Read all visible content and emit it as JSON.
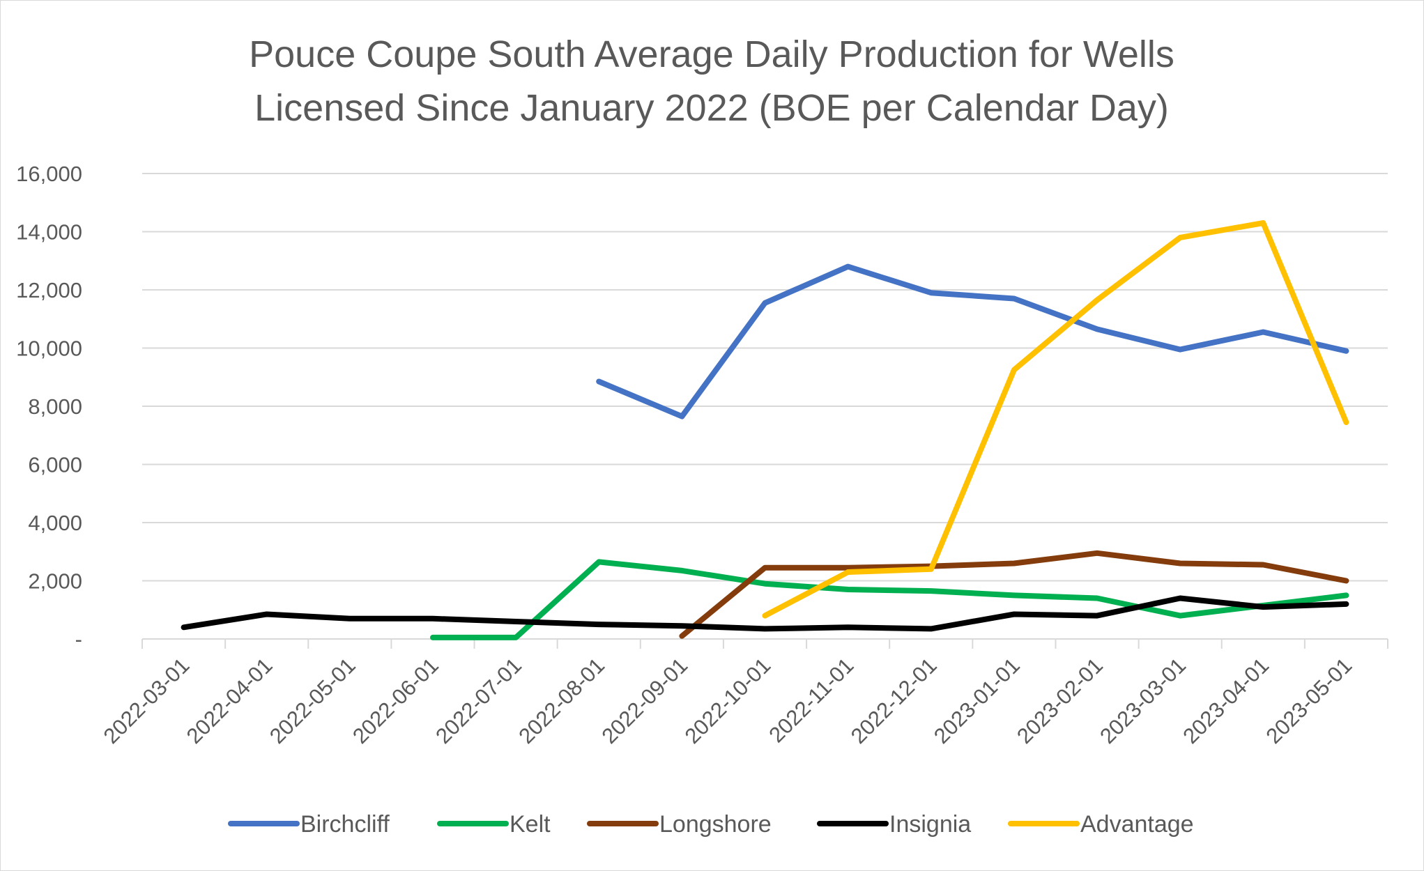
{
  "chart_data": {
    "type": "line",
    "title": "Pouce Coupe South Average Daily Production for Wells Licensed Since January 2022 (BOE per Calendar Day)",
    "title_lines": [
      "Pouce Coupe South Average Daily Production for Wells",
      "Licensed Since January 2022 (BOE per Calendar Day)"
    ],
    "xlabel": "",
    "ylabel": "",
    "categories": [
      "2022-03-01",
      "2022-04-01",
      "2022-05-01",
      "2022-06-01",
      "2022-07-01",
      "2022-08-01",
      "2022-09-01",
      "2022-10-01",
      "2022-11-01",
      "2022-12-01",
      "2023-01-01",
      "2023-02-01",
      "2023-03-01",
      "2023-04-01",
      "2023-05-01"
    ],
    "ylim": [
      0,
      16000
    ],
    "y_ticks": [
      0,
      2000,
      4000,
      6000,
      8000,
      10000,
      12000,
      14000,
      16000
    ],
    "y_tick_labels": [
      "-",
      "2,000",
      "4,000",
      "6,000",
      "8,000",
      "10,000",
      "12,000",
      "14,000",
      "16,000"
    ],
    "grid": "horizontal",
    "legend_position": "bottom",
    "series": [
      {
        "name": "Birchcliff",
        "color": "#4472C4",
        "values": [
          null,
          null,
          null,
          null,
          null,
          8850,
          7650,
          11550,
          12800,
          11900,
          11700,
          10650,
          9950,
          10550,
          9900
        ]
      },
      {
        "name": "Kelt",
        "color": "#00B050",
        "values": [
          null,
          null,
          null,
          50,
          50,
          2650,
          2350,
          1900,
          1700,
          1650,
          1500,
          1400,
          800,
          1150,
          1500
        ]
      },
      {
        "name": "Longshore",
        "color": "#843C0C",
        "values": [
          null,
          null,
          null,
          null,
          null,
          null,
          100,
          2450,
          2450,
          2500,
          2600,
          2950,
          2600,
          2550,
          2000
        ]
      },
      {
        "name": "Insignia",
        "color": "#000000",
        "values": [
          400,
          850,
          700,
          700,
          600,
          500,
          450,
          350,
          400,
          350,
          850,
          800,
          1400,
          1100,
          1200
        ]
      },
      {
        "name": "Advantage",
        "color": "#FFC000",
        "values": [
          null,
          null,
          null,
          null,
          null,
          null,
          null,
          800,
          2300,
          2400,
          9250,
          11650,
          13800,
          14300,
          7450
        ]
      }
    ]
  }
}
